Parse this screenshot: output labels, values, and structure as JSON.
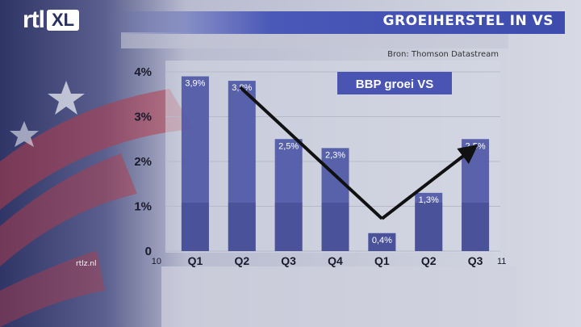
{
  "header": {
    "logo_main": "rtl",
    "logo_sub": "XL",
    "title": "GROEIHERSTEL IN VS"
  },
  "source": "Bron: Thomson Datastream",
  "site": "rtlz.nl",
  "colors": {
    "bar": "#4e58a6",
    "bar_dark": "#3c4487",
    "title_bar": "#3d4cad",
    "arrow": "#111111",
    "panel": "#d4d6e2"
  },
  "chart_data": {
    "type": "bar",
    "title": "BBP groei VS",
    "categories": [
      "Q1",
      "Q2",
      "Q3",
      "Q4",
      "Q1",
      "Q2",
      "Q3"
    ],
    "year_labels": [
      "10",
      "11"
    ],
    "values": [
      3.9,
      3.8,
      2.5,
      2.3,
      0.4,
      1.3,
      2.5
    ],
    "value_labels": [
      "3,9%",
      "3,8%",
      "2,5%",
      "2,3%",
      "0,4%",
      "1,3%",
      "2,5%"
    ],
    "y_ticks": [
      {
        "v": 0,
        "label": "0"
      },
      {
        "v": 1,
        "label": "1%"
      },
      {
        "v": 2,
        "label": "2%"
      },
      {
        "v": 3,
        "label": "3%"
      },
      {
        "v": 4,
        "label": "4%"
      }
    ],
    "ylim": [
      0,
      4
    ],
    "grid": true,
    "legend": "top-center",
    "annotation": "arrow trend: down from Q2 2010 to Q1 2011, up to Q3 2011"
  }
}
